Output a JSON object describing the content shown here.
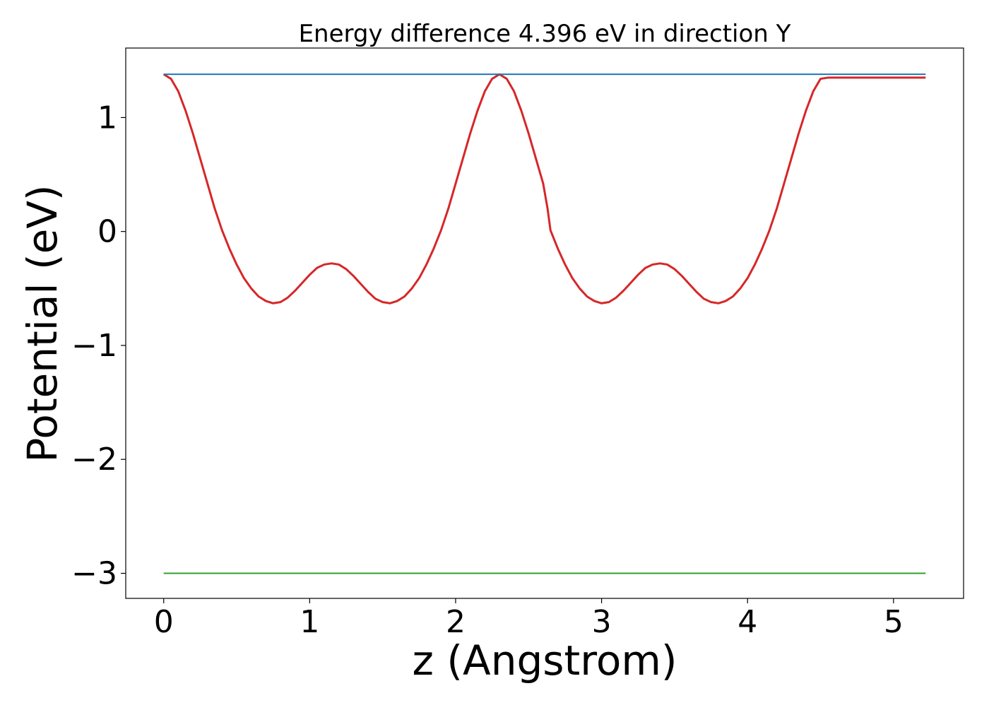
{
  "chart_data": {
    "type": "line",
    "title": "Energy difference 4.396 eV in direction Y",
    "xlabel": "z (Angstrom)",
    "ylabel": "Potential (eV)",
    "xlim": [
      -0.26,
      5.48
    ],
    "ylim": [
      -3.22,
      1.61
    ],
    "xticks": [
      0,
      1,
      2,
      3,
      4,
      5
    ],
    "xtick_labels": [
      "0",
      "1",
      "2",
      "3",
      "4",
      "5"
    ],
    "yticks": [
      -3,
      -2,
      -1,
      0,
      1
    ],
    "ytick_labels": [
      "−3",
      "−2",
      "−1",
      "0",
      "1"
    ],
    "grid": false,
    "legend": "none",
    "series": [
      {
        "color": "#d62728",
        "x": [
          0,
          0.05,
          0.1,
          0.15,
          0.2,
          0.25,
          0.3,
          0.35,
          0.4,
          0.45,
          0.5,
          0.55,
          0.6,
          0.65,
          0.7,
          0.75,
          0.8,
          0.85,
          0.9,
          0.95,
          1.0,
          1.05,
          1.1,
          1.15,
          1.2,
          1.25,
          1.3,
          1.35,
          1.4,
          1.45,
          1.5,
          1.55,
          1.6,
          1.65,
          1.7,
          1.75,
          1.8,
          1.85,
          1.9,
          1.95,
          2.0,
          2.05,
          2.1,
          2.15,
          2.2,
          2.25,
          2.3,
          2.35,
          2.4,
          2.45,
          2.5,
          2.55,
          2.6,
          2.63,
          2.65,
          2.7,
          2.75,
          2.8,
          2.85,
          2.9,
          2.95,
          3.0,
          3.05,
          3.1,
          3.15,
          3.2,
          3.25,
          3.3,
          3.35,
          3.4,
          3.45,
          3.5,
          3.55,
          3.6,
          3.65,
          3.7,
          3.75,
          3.8,
          3.85,
          3.9,
          3.95,
          4.0,
          4.05,
          4.1,
          4.15,
          4.2,
          4.25,
          4.3,
          4.35,
          4.4,
          4.45,
          4.5,
          4.55,
          4.6,
          4.65,
          4.7,
          4.75,
          4.8,
          4.85,
          4.9,
          4.95,
          5.0,
          5.05,
          5.1,
          5.15,
          5.2,
          5.22
        ],
        "y": [
          1.38,
          1.34,
          1.23,
          1.06,
          0.86,
          0.64,
          0.42,
          0.2,
          0.01,
          -0.15,
          -0.29,
          -0.41,
          -0.5,
          -0.57,
          -0.61,
          -0.63,
          -0.62,
          -0.58,
          -0.52,
          -0.45,
          -0.38,
          -0.32,
          -0.29,
          -0.28,
          -0.29,
          -0.33,
          -0.39,
          -0.46,
          -0.53,
          -0.59,
          -0.62,
          -0.63,
          -0.61,
          -0.57,
          -0.5,
          -0.41,
          -0.29,
          -0.15,
          0.01,
          0.2,
          0.42,
          0.64,
          0.86,
          1.06,
          1.23,
          1.34,
          1.38,
          1.34,
          1.23,
          1.06,
          0.86,
          0.64,
          0.42,
          0.2,
          0.01,
          -0.15,
          -0.29,
          -0.41,
          -0.5,
          -0.57,
          -0.61,
          -0.63,
          -0.62,
          -0.58,
          -0.52,
          -0.45,
          -0.38,
          -0.32,
          -0.29,
          -0.28,
          -0.29,
          -0.33,
          -0.39,
          -0.46,
          -0.53,
          -0.59,
          -0.62,
          -0.63,
          -0.61,
          -0.57,
          -0.5,
          -0.41,
          -0.29,
          -0.15,
          0.01,
          0.2,
          0.42,
          0.64,
          0.86,
          1.06,
          1.23,
          1.34,
          1.35,
          1.35,
          1.35,
          1.35,
          1.35,
          1.35,
          1.35,
          1.35,
          1.35,
          1.35,
          1.35,
          1.35,
          1.35,
          1.35,
          1.35
        ]
      },
      {
        "color": "#1f77b4",
        "x": [
          0,
          5.22
        ],
        "y": [
          1.38,
          1.38
        ]
      },
      {
        "color": "#2ca02c",
        "x": [
          0,
          5.22
        ],
        "y": [
          -3.0,
          -3.0
        ]
      }
    ]
  }
}
